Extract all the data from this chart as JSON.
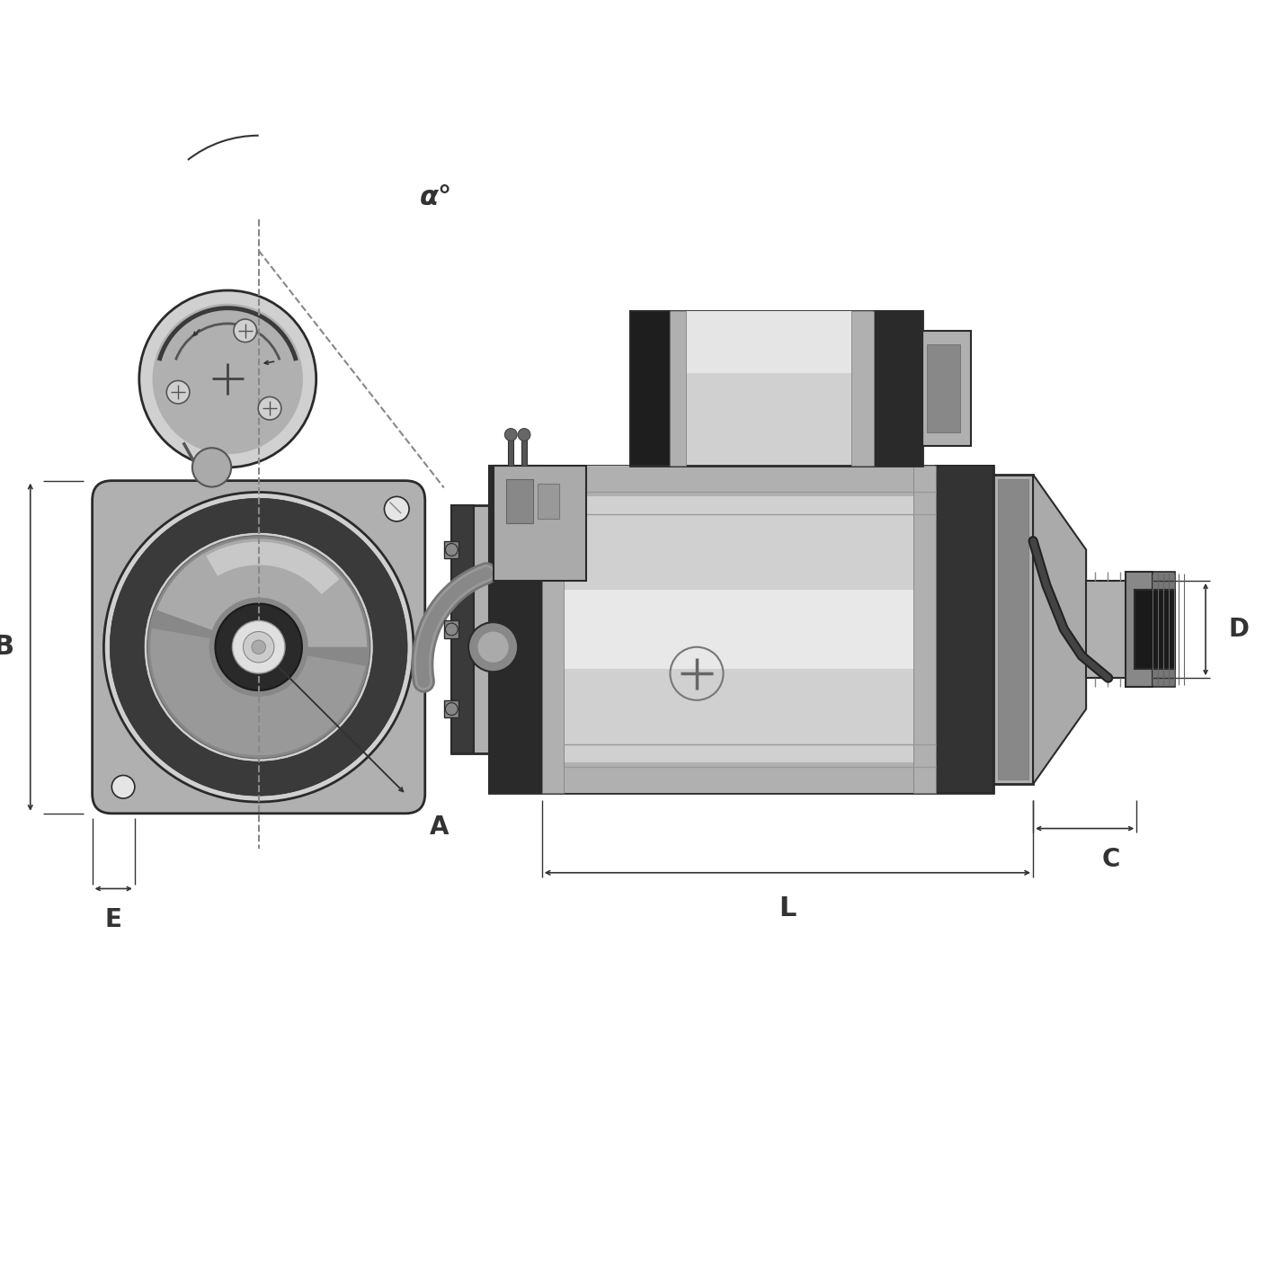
{
  "bg_color": "#ffffff",
  "lc": "#2a2a2a",
  "dc": "#333333",
  "labels": {
    "A": "A",
    "B": "B",
    "C": "C",
    "D": "D",
    "E": "E",
    "alpha": "α°",
    "L": "L"
  },
  "colors": {
    "steel_highlight": "#e8e8e8",
    "steel_light": "#d0d0d0",
    "steel_mid": "#b0b0b0",
    "steel_dark": "#888888",
    "steel_very_dark": "#555555",
    "near_black": "#2a2a2a",
    "dark_gray": "#444444",
    "mid_gray": "#777777",
    "light_gray": "#cccccc",
    "flange_bg": "#c0c0c0",
    "solenoid_body": "#b8b8b8",
    "motor_body_light": "#d5d5d5",
    "motor_body_mid": "#aaaaaa"
  }
}
